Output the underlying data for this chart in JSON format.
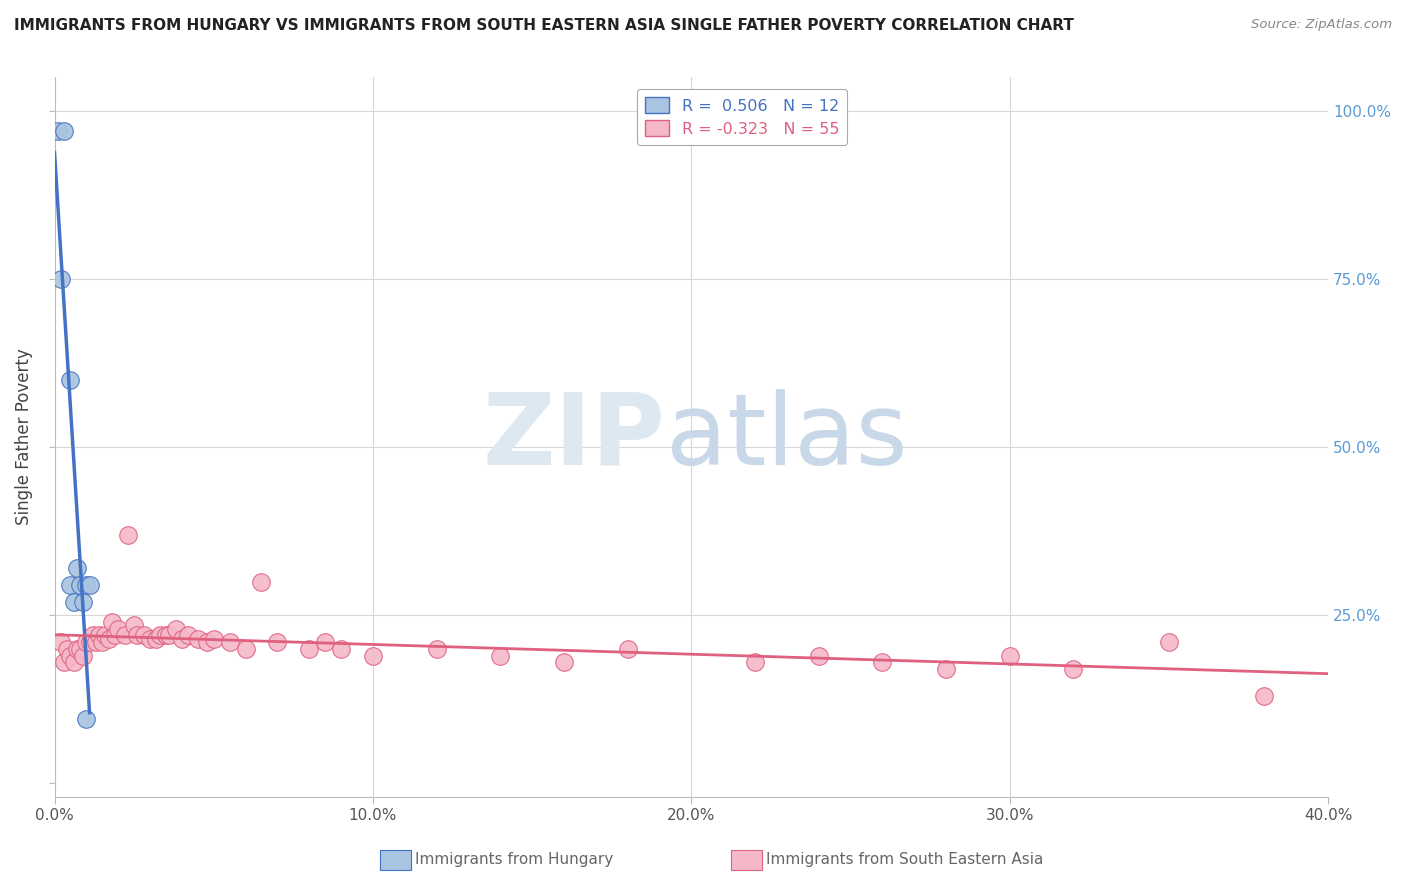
{
  "title": "IMMIGRANTS FROM HUNGARY VS IMMIGRANTS FROM SOUTH EASTERN ASIA SINGLE FATHER POVERTY CORRELATION CHART",
  "source": "Source: ZipAtlas.com",
  "ylabel": "Single Father Poverty",
  "xlim": [
    0,
    0.4
  ],
  "ylim": [
    -0.02,
    1.05
  ],
  "color_hungary": "#a8c4e0",
  "color_sea": "#f4b8c8",
  "line_color_hungary": "#4472c4",
  "line_color_sea": "#e06080",
  "hungary_x": [
    0.001,
    0.002,
    0.003,
    0.005,
    0.005,
    0.006,
    0.007,
    0.008,
    0.009,
    0.01,
    0.011,
    0.01
  ],
  "hungary_y": [
    0.97,
    0.75,
    0.97,
    0.6,
    0.295,
    0.27,
    0.32,
    0.295,
    0.27,
    0.295,
    0.295,
    0.095
  ],
  "sea_x": [
    0.002,
    0.003,
    0.004,
    0.005,
    0.006,
    0.007,
    0.008,
    0.009,
    0.01,
    0.011,
    0.012,
    0.013,
    0.014,
    0.015,
    0.016,
    0.017,
    0.018,
    0.019,
    0.02,
    0.022,
    0.023,
    0.025,
    0.026,
    0.028,
    0.03,
    0.032,
    0.033,
    0.035,
    0.036,
    0.038,
    0.04,
    0.042,
    0.045,
    0.048,
    0.05,
    0.055,
    0.06,
    0.065,
    0.07,
    0.08,
    0.085,
    0.09,
    0.1,
    0.12,
    0.14,
    0.16,
    0.18,
    0.22,
    0.24,
    0.26,
    0.28,
    0.3,
    0.32,
    0.35,
    0.38
  ],
  "sea_y": [
    0.21,
    0.18,
    0.2,
    0.19,
    0.18,
    0.2,
    0.2,
    0.19,
    0.21,
    0.21,
    0.22,
    0.21,
    0.22,
    0.21,
    0.22,
    0.215,
    0.24,
    0.22,
    0.23,
    0.22,
    0.37,
    0.235,
    0.22,
    0.22,
    0.215,
    0.215,
    0.22,
    0.22,
    0.22,
    0.23,
    0.215,
    0.22,
    0.215,
    0.21,
    0.215,
    0.21,
    0.2,
    0.3,
    0.21,
    0.2,
    0.21,
    0.2,
    0.19,
    0.2,
    0.19,
    0.18,
    0.2,
    0.18,
    0.19,
    0.18,
    0.17,
    0.19,
    0.17,
    0.21,
    0.13
  ]
}
